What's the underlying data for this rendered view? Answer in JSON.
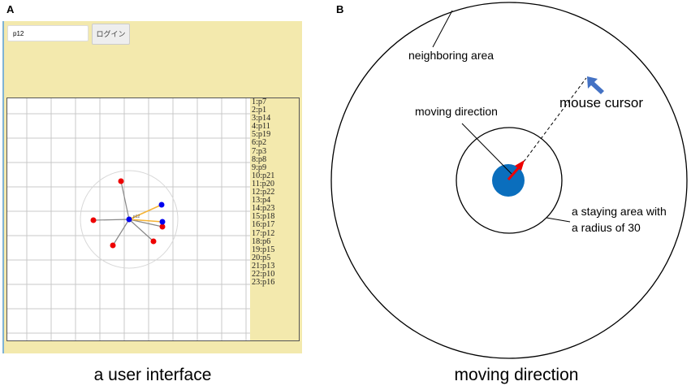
{
  "panel_a": {
    "label": "A",
    "login_input_value": "p12",
    "login_button": "ログイン",
    "user_list": [
      "1:p7",
      "2:p1",
      "3:p14",
      "4:p11",
      "5:p19",
      "6:p2",
      "7:p3",
      "8:p8",
      "9:p9",
      "10:p21",
      "11:p20",
      "12:p22",
      "13:p4",
      "14:p23",
      "15:p18",
      "16:p17",
      "17:p12",
      "18:p6",
      "19:p15",
      "20:p5",
      "21:p13",
      "22:p10",
      "23:p16"
    ],
    "caption": "a user interface",
    "colors": {
      "background": "#f3e9ad",
      "self": "#0000ee",
      "others": "#ee0000",
      "linked": "#f5b335",
      "links": "#888888"
    }
  },
  "panel_b": {
    "label": "B",
    "neighboring_area": "neighboring area",
    "moving_direction": "moving direction",
    "mouse_cursor": "mouse cursor",
    "staying_area_line1": "a staying area with",
    "staying_area_line2": "a radius of 30",
    "caption": "moving direction",
    "colors": {
      "user_dot": "#0a6ebd",
      "direction_arrow": "#ee0000",
      "cursor": "#4472c4"
    }
  }
}
